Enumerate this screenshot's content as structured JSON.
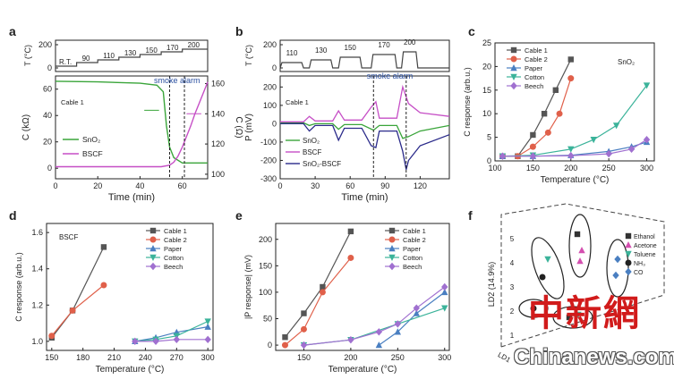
{
  "chart_data": [
    {
      "panel": "a",
      "type": "line",
      "xlabel": "Time (min)",
      "ylabel": "C (kΩ)",
      "y2label": "C (Ω)",
      "toplabel": "T (°C)",
      "xticks": [
        "0",
        "20",
        "40",
        "60"
      ],
      "yticks": [
        "0",
        "20",
        "40",
        "60"
      ],
      "y2ticks": [
        "100",
        "120",
        "140",
        "160"
      ],
      "topticks": [
        "0",
        "200"
      ],
      "temps": [
        "R.T.",
        "90",
        "110",
        "130",
        "150",
        "170",
        "200"
      ],
      "annotation": "smoke alarm",
      "sample_label": "Cable 1",
      "legend": [
        "SnO₂",
        "BSCF"
      ],
      "colors": {
        "SnO2": "#3aa53a",
        "BSCF": "#c64fc6"
      },
      "xlim": [
        0,
        72
      ],
      "ylim": [
        -8,
        70
      ],
      "series": [
        {
          "name": "SnO₂",
          "axis": "left",
          "x": [
            0,
            20,
            40,
            48,
            51,
            52.5,
            54,
            56,
            60,
            72
          ],
          "y": [
            66,
            65.5,
            64.5,
            63,
            58,
            32,
            16,
            8,
            4,
            4
          ]
        },
        {
          "name": "BSCF",
          "axis": "right",
          "x": [
            0,
            30,
            50,
            54,
            56,
            58,
            60,
            62,
            64,
            66,
            68,
            70,
            72
          ],
          "y": [
            105,
            105,
            105,
            106,
            108,
            112,
            118,
            125,
            132,
            140,
            147,
            154,
            161
          ]
        }
      ]
    },
    {
      "panel": "b",
      "type": "line",
      "xlabel": "Time (min)",
      "ylabel": "P (mV)",
      "toplabel": "T (°C)",
      "xticks": [
        "0",
        "30",
        "60",
        "90",
        "120"
      ],
      "yticks": [
        "-300",
        "-200",
        "-100",
        "0",
        "100",
        "200"
      ],
      "topticks": [
        "0",
        "200"
      ],
      "temps": [
        "110",
        "130",
        "150",
        "170",
        "200"
      ],
      "annotation": "smoke alarm",
      "sample_label": "Cable 1",
      "legend": [
        "SnO₂",
        "BSCF",
        "SnO₂-BSCF"
      ],
      "colors": {
        "SnO2": "#3aa53a",
        "BSCF": "#c64fc6",
        "SnO2-BSCF": "#2a2a8a"
      },
      "xlim": [
        0,
        145
      ],
      "ylim": [
        -300,
        260
      ],
      "series": [
        {
          "name": "SnO₂",
          "x": [
            0,
            20,
            25,
            30,
            45,
            50,
            55,
            70,
            80,
            85,
            100,
            105,
            110,
            120,
            145
          ],
          "y": [
            5,
            5,
            -10,
            0,
            0,
            -30,
            -5,
            -5,
            -35,
            -10,
            -10,
            -80,
            -70,
            -40,
            -10
          ]
        },
        {
          "name": "BSCF",
          "x": [
            0,
            20,
            25,
            30,
            45,
            50,
            55,
            70,
            78,
            82,
            85,
            100,
            105,
            110,
            120,
            145
          ],
          "y": [
            10,
            10,
            40,
            15,
            15,
            70,
            20,
            20,
            90,
            120,
            30,
            30,
            200,
            110,
            60,
            40
          ]
        },
        {
          "name": "SnO₂-BSCF",
          "x": [
            0,
            20,
            25,
            30,
            45,
            50,
            55,
            70,
            78,
            82,
            85,
            100,
            105,
            108,
            110,
            120,
            145
          ],
          "y": [
            0,
            0,
            -40,
            -10,
            -10,
            -90,
            -25,
            -25,
            -120,
            -130,
            -40,
            -40,
            -150,
            -250,
            -200,
            -120,
            -60
          ]
        }
      ]
    },
    {
      "panel": "c",
      "type": "line",
      "xlabel": "Temperature (°C)",
      "ylabel": "C response (arb.u.)",
      "sample_label": "SnO₂",
      "xticks": [
        "100",
        "150",
        "200",
        "250",
        "300"
      ],
      "yticks": [
        "0",
        "5",
        "10",
        "15",
        "20",
        "25"
      ],
      "xlim": [
        100,
        310
      ],
      "ylim": [
        0,
        25
      ],
      "series": [
        {
          "name": "Cable 1",
          "color": "#555555",
          "marker": "square",
          "x": [
            110,
            130,
            150,
            165,
            180,
            200
          ],
          "y": [
            1,
            1,
            5.5,
            10,
            15,
            21.5
          ]
        },
        {
          "name": "Cable 2",
          "color": "#e0604a",
          "marker": "circle",
          "x": [
            110,
            130,
            150,
            170,
            185,
            200
          ],
          "y": [
            1,
            1,
            3,
            6,
            10,
            17.5
          ]
        },
        {
          "name": "Paper",
          "color": "#4a7fc1",
          "marker": "triangle-up",
          "x": [
            110,
            150,
            200,
            250,
            280,
            300
          ],
          "y": [
            1,
            1,
            1.2,
            2,
            3,
            4
          ]
        },
        {
          "name": "Cotton",
          "color": "#3bb39a",
          "marker": "triangle-down",
          "x": [
            110,
            150,
            200,
            230,
            260,
            300
          ],
          "y": [
            1,
            1.2,
            2.5,
            4.5,
            7.5,
            16
          ]
        },
        {
          "name": "Beech",
          "color": "#a070d0",
          "marker": "diamond",
          "x": [
            110,
            150,
            200,
            250,
            280,
            300
          ],
          "y": [
            1,
            1,
            1.1,
            1.5,
            2.5,
            4.5
          ]
        }
      ]
    },
    {
      "panel": "d",
      "type": "line",
      "xlabel": "Temperature (°C)",
      "ylabel": "C response (arb.u.)",
      "sample_label": "BSCF",
      "xticks": [
        "150",
        "180",
        "210",
        "240",
        "270",
        "300"
      ],
      "yticks": [
        "1.0",
        "1.2",
        "1.4",
        "1.6"
      ],
      "xlim": [
        145,
        305
      ],
      "ylim": [
        0.95,
        1.65
      ],
      "series": [
        {
          "name": "Cable 1",
          "color": "#555555",
          "marker": "square",
          "x": [
            150,
            170,
            200
          ],
          "y": [
            1.02,
            1.17,
            1.52
          ]
        },
        {
          "name": "Cable 2",
          "color": "#e0604a",
          "marker": "circle",
          "x": [
            150,
            170,
            200
          ],
          "y": [
            1.03,
            1.17,
            1.31
          ]
        },
        {
          "name": "Paper",
          "color": "#4a7fc1",
          "marker": "triangle-up",
          "x": [
            230,
            250,
            270,
            300
          ],
          "y": [
            1.0,
            1.02,
            1.05,
            1.08
          ]
        },
        {
          "name": "Cotton",
          "color": "#3bb39a",
          "marker": "triangle-down",
          "x": [
            230,
            250,
            270,
            300
          ],
          "y": [
            1.0,
            1.01,
            1.03,
            1.11
          ]
        },
        {
          "name": "Beech",
          "color": "#a070d0",
          "marker": "diamond",
          "x": [
            230,
            250,
            270,
            300
          ],
          "y": [
            1.0,
            1.0,
            1.01,
            1.01
          ]
        }
      ]
    },
    {
      "panel": "e",
      "type": "line",
      "xlabel": "Temperature (°C)",
      "ylabel": "|P response| (mV)",
      "xticks": [
        "150",
        "200",
        "250",
        "300"
      ],
      "yticks": [
        "0",
        "50",
        "100",
        "150",
        "200"
      ],
      "xlim": [
        120,
        305
      ],
      "ylim": [
        -10,
        230
      ],
      "series": [
        {
          "name": "Cable 1",
          "color": "#555555",
          "marker": "square",
          "x": [
            130,
            150,
            170,
            200
          ],
          "y": [
            15,
            60,
            110,
            215
          ]
        },
        {
          "name": "Cable 2",
          "color": "#e0604a",
          "marker": "circle",
          "x": [
            130,
            150,
            170,
            200
          ],
          "y": [
            0,
            30,
            100,
            165
          ]
        },
        {
          "name": "Paper",
          "color": "#4a7fc1",
          "marker": "triangle-up",
          "x": [
            230,
            250,
            270,
            300
          ],
          "y": [
            0,
            25,
            60,
            100
          ]
        },
        {
          "name": "Cotton",
          "color": "#3bb39a",
          "marker": "triangle-down",
          "x": [
            150,
            200,
            250,
            300
          ],
          "y": [
            0,
            10,
            40,
            70
          ]
        },
        {
          "name": "Beech",
          "color": "#a070d0",
          "marker": "diamond",
          "x": [
            150,
            200,
            230,
            250,
            270,
            300
          ],
          "y": [
            0,
            10,
            25,
            40,
            70,
            110
          ]
        }
      ]
    },
    {
      "panel": "f",
      "type": "scatter",
      "ylabel": "LD2 (14.9%)",
      "xlabel": "LD1",
      "yticks": [
        "1",
        "2",
        "3",
        "4",
        "5"
      ],
      "legend": [
        "Ethanol",
        "Acetone",
        "Toluene",
        "NH₃",
        "CO"
      ]
    }
  ],
  "watermark": {
    "chinese": "中新網",
    "english": "Chinanews.com"
  }
}
